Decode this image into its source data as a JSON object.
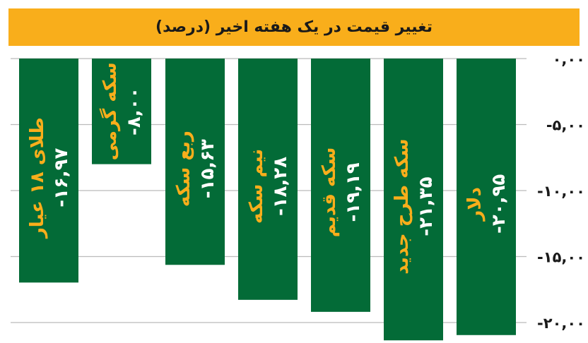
{
  "chart_data": {
    "type": "bar",
    "title": "تغییر قیمت در یک هفته اخیر (درصد)",
    "categories": [
      "طلای ۱۸ عیار",
      "سکه گرمی",
      "ربع سکه",
      "نیم سکه",
      "سکه قدیم",
      "سکه طرح جدید",
      "دلار"
    ],
    "values": [
      -16.97,
      -8.0,
      -15.63,
      -18.28,
      -19.19,
      -21.35,
      -20.95
    ],
    "value_labels": [
      "-۱۶,۹۷",
      "-۸,۰۰",
      "-۱۵,۶۳",
      "-۱۸,۲۸",
      "-۱۹,۱۹",
      "-۲۱,۳۵",
      "-۲۰,۹۵"
    ],
    "yticks": [
      0,
      -5,
      -10,
      -15,
      -20
    ],
    "ytick_labels": [
      "۰,۰۰",
      "-۵,۰۰",
      "-۱۰,۰۰",
      "-۱۵,۰۰",
      "-۲۰,۰۰"
    ],
    "ylim": [
      -21.35,
      0
    ],
    "y_axis_position": "right",
    "grid": true,
    "colors": {
      "bar": "#036b37",
      "category_text": "#f9ae1b",
      "value_text": "#ffffff",
      "title_bg": "#f9ae1b",
      "grid": "#bbbbbb"
    }
  }
}
